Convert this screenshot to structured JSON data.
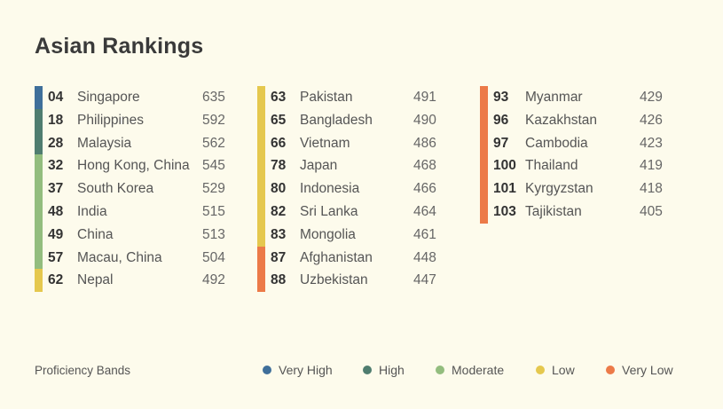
{
  "title": "Asian Rankings",
  "legend_title": "Proficiency Bands",
  "colors": {
    "very_high": "#3f6f9a",
    "high": "#4f7d6f",
    "moderate": "#93bd7e",
    "low": "#e5c84e",
    "very_low": "#ec7a48"
  },
  "chart_data": {
    "type": "table",
    "title": "Asian Rankings",
    "legend": [
      {
        "key": "very_high",
        "label": "Very High"
      },
      {
        "key": "high",
        "label": "High"
      },
      {
        "key": "moderate",
        "label": "Moderate"
      },
      {
        "key": "low",
        "label": "Low"
      },
      {
        "key": "very_low",
        "label": "Very Low"
      }
    ],
    "columns": [
      [
        {
          "rank": "04",
          "country": "Singapore",
          "score": 635,
          "band": "very_high"
        },
        {
          "rank": "18",
          "country": "Philippines",
          "score": 592,
          "band": "high"
        },
        {
          "rank": "28",
          "country": "Malaysia",
          "score": 562,
          "band": "high"
        },
        {
          "rank": "32",
          "country": "Hong Kong, China",
          "score": 545,
          "band": "moderate"
        },
        {
          "rank": "37",
          "country": "South Korea",
          "score": 529,
          "band": "moderate"
        },
        {
          "rank": "48",
          "country": "India",
          "score": 515,
          "band": "moderate"
        },
        {
          "rank": "49",
          "country": "China",
          "score": 513,
          "band": "moderate"
        },
        {
          "rank": "57",
          "country": "Macau, China",
          "score": 504,
          "band": "moderate"
        },
        {
          "rank": "62",
          "country": "Nepal",
          "score": 492,
          "band": "low"
        }
      ],
      [
        {
          "rank": "63",
          "country": "Pakistan",
          "score": 491,
          "band": "low"
        },
        {
          "rank": "65",
          "country": "Bangladesh",
          "score": 490,
          "band": "low"
        },
        {
          "rank": "66",
          "country": "Vietnam",
          "score": 486,
          "band": "low"
        },
        {
          "rank": "78",
          "country": "Japan",
          "score": 468,
          "band": "low"
        },
        {
          "rank": "80",
          "country": "Indonesia",
          "score": 466,
          "band": "low"
        },
        {
          "rank": "82",
          "country": "Sri Lanka",
          "score": 464,
          "band": "low"
        },
        {
          "rank": "83",
          "country": "Mongolia",
          "score": 461,
          "band": "low"
        },
        {
          "rank": "87",
          "country": "Afghanistan",
          "score": 448,
          "band": "very_low"
        },
        {
          "rank": "88",
          "country": "Uzbekistan",
          "score": 447,
          "band": "very_low"
        }
      ],
      [
        {
          "rank": "93",
          "country": "Myanmar",
          "score": 429,
          "band": "very_low"
        },
        {
          "rank": "96",
          "country": "Kazakhstan",
          "score": 426,
          "band": "very_low"
        },
        {
          "rank": "97",
          "country": "Cambodia",
          "score": 423,
          "band": "very_low"
        },
        {
          "rank": "100",
          "country": "Thailand",
          "score": 419,
          "band": "very_low"
        },
        {
          "rank": "101",
          "country": "Kyrgyzstan",
          "score": 418,
          "band": "very_low"
        },
        {
          "rank": "103",
          "country": "Tajikistan",
          "score": 405,
          "band": "very_low"
        }
      ]
    ]
  }
}
